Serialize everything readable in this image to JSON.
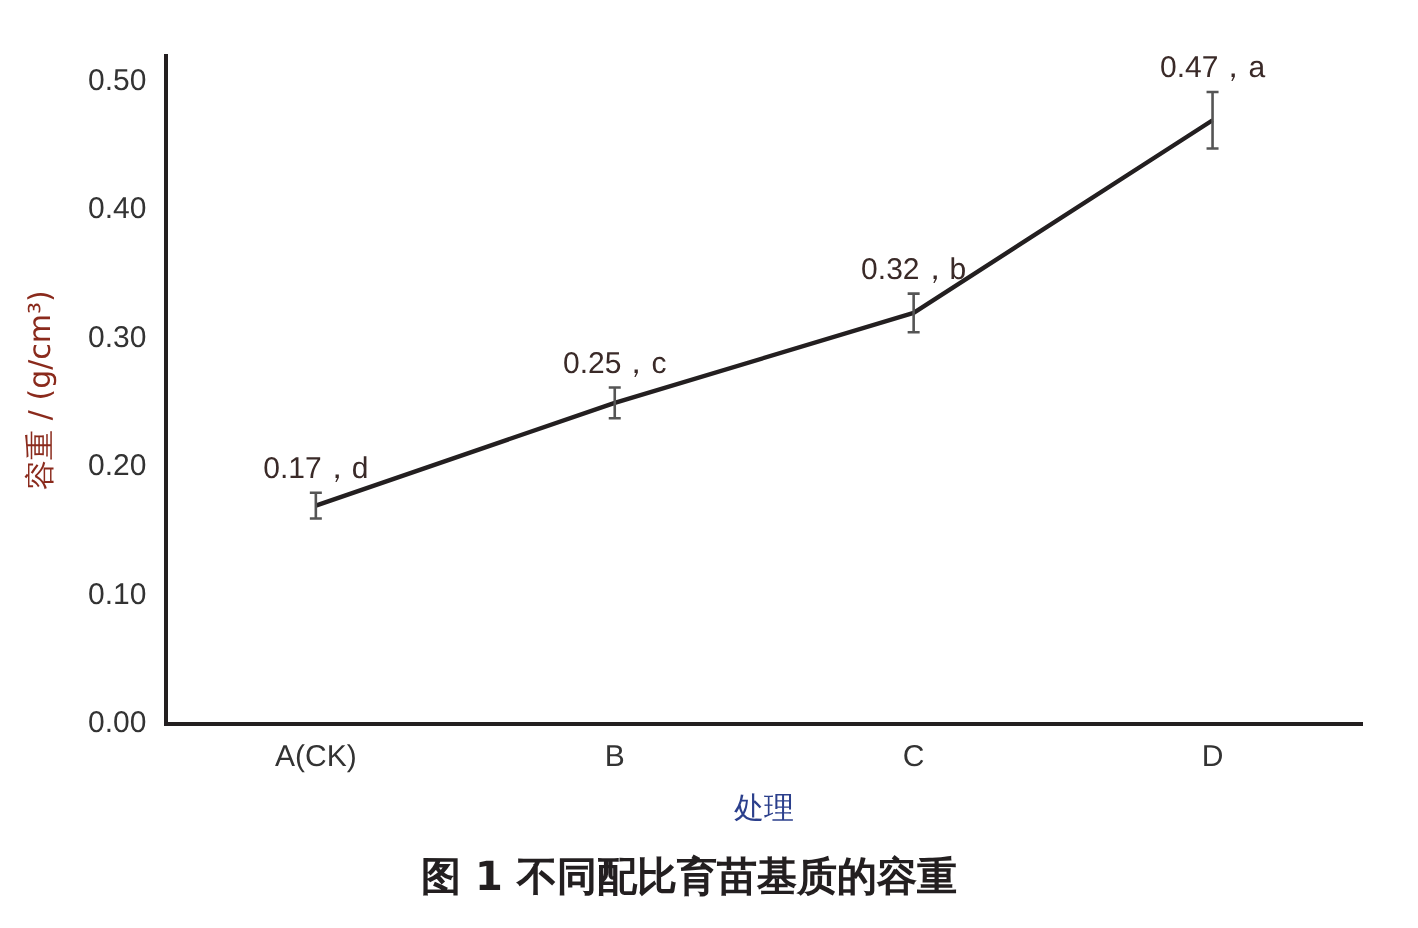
{
  "chart_data": {
    "type": "line",
    "title": "图 1 不同配比育苗基质的容重",
    "xlabel": "处理",
    "ylabel": "容重 / (g/cm³)",
    "categories": [
      "A(CK)",
      "B",
      "C",
      "D"
    ],
    "series": [
      {
        "color": "#231f20",
        "values": [
          0.17,
          0.25,
          0.32,
          0.47
        ],
        "errors": [
          0.01,
          0.012,
          0.015,
          0.022
        ],
        "value_labels": [
          "0.17，d",
          "0.25，c",
          "0.32，b",
          "0.47，a"
        ]
      }
    ],
    "ylim": [
      0,
      0.52
    ],
    "yticks": [
      {
        "value": 0,
        "label": "0.00"
      },
      {
        "value": 0.1,
        "label": "0.10"
      },
      {
        "value": 0.2,
        "label": "0.20"
      },
      {
        "value": 0.3,
        "label": "0.30"
      },
      {
        "value": 0.4,
        "label": "0.40"
      },
      {
        "value": 0.5,
        "label": "0.50"
      }
    ],
    "grid": false,
    "legend": false,
    "marker": "none",
    "line_style": "solid"
  }
}
